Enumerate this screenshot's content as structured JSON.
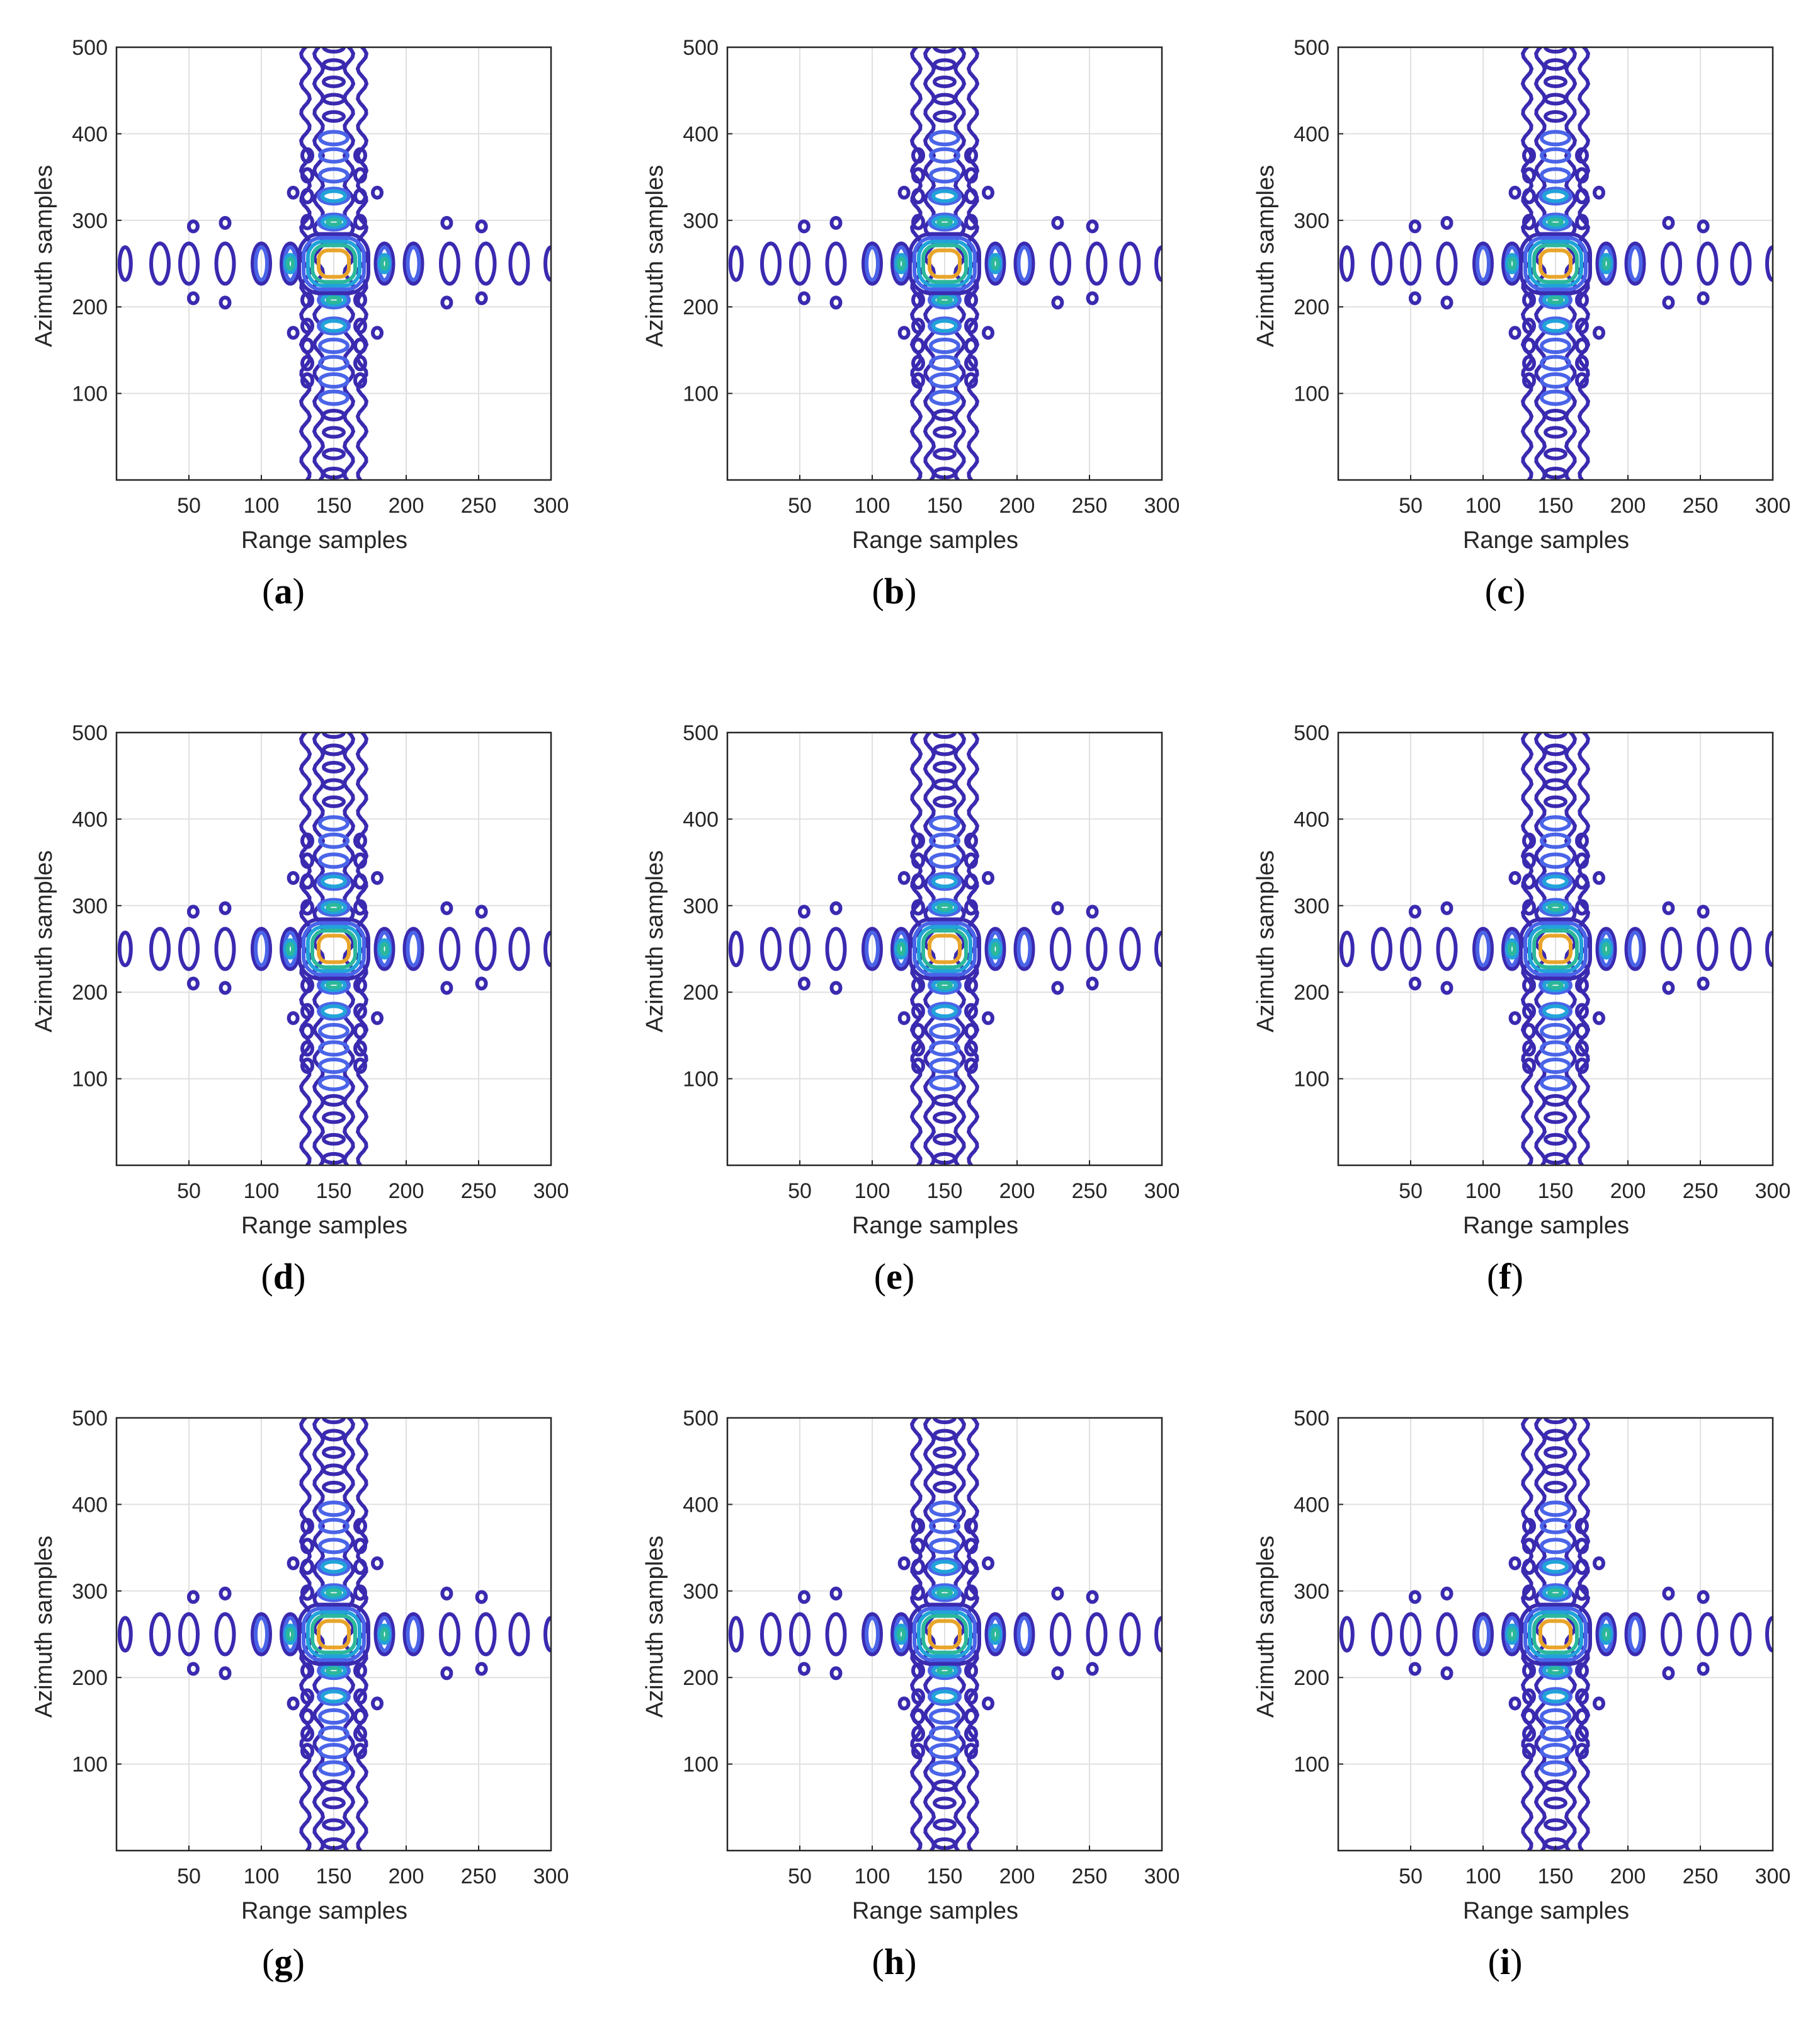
{
  "figure": {
    "panels": [
      {
        "label": "(a)",
        "letter": "a"
      },
      {
        "label": "(b)",
        "letter": "b"
      },
      {
        "label": "(c)",
        "letter": "c"
      },
      {
        "label": "(d)",
        "letter": "d"
      },
      {
        "label": "(e)",
        "letter": "e"
      },
      {
        "label": "(f)",
        "letter": "f"
      },
      {
        "label": "(g)",
        "letter": "g"
      },
      {
        "label": "(h)",
        "letter": "h"
      },
      {
        "label": "(i)",
        "letter": "i"
      }
    ]
  },
  "chart_data": {
    "type": "contour",
    "xlabel": "Range samples",
    "ylabel": "Azimuth samples",
    "xlim": [
      0,
      300
    ],
    "ylim": [
      0,
      500
    ],
    "xticks": [
      50,
      100,
      150,
      200,
      250,
      300
    ],
    "yticks": [
      100,
      200,
      300,
      400,
      500
    ],
    "grid": true,
    "peak": {
      "x": 150,
      "y": 250
    },
    "colors": {
      "level1": "#3a2ab0",
      "level2": "#4a64e8",
      "level3": "#21a3d9",
      "level4": "#2cb89a",
      "level5": "#e8a52a",
      "axis": "#262626",
      "grid": "#e0e0e0"
    },
    "horizontal_lobes": [
      {
        "x": 6,
        "level": 1
      },
      {
        "x": 30,
        "level": 1
      },
      {
        "x": 50,
        "level": 1
      },
      {
        "x": 75,
        "level": 1
      },
      {
        "x": 100,
        "level": 2
      },
      {
        "x": 120,
        "level": 4
      },
      {
        "x": 185,
        "level": 4
      },
      {
        "x": 205,
        "level": 2
      },
      {
        "x": 230,
        "level": 1
      },
      {
        "x": 255,
        "level": 1
      },
      {
        "x": 278,
        "level": 1
      },
      {
        "x": 300,
        "level": 1
      }
    ],
    "vertical_lobes": [
      {
        "y": 8,
        "level": 1
      },
      {
        "y": 30,
        "level": 1
      },
      {
        "y": 55,
        "level": 1
      },
      {
        "y": 75,
        "level": 1
      },
      {
        "y": 95,
        "level": 2
      },
      {
        "y": 115,
        "level": 2
      },
      {
        "y": 135,
        "level": 2
      },
      {
        "y": 155,
        "level": 2
      },
      {
        "y": 178,
        "level": 3
      },
      {
        "y": 208,
        "level": 4
      },
      {
        "y": 298,
        "level": 4
      },
      {
        "y": 328,
        "level": 3
      },
      {
        "y": 352,
        "level": 2
      },
      {
        "y": 375,
        "level": 2
      },
      {
        "y": 395,
        "level": 2
      },
      {
        "y": 420,
        "level": 1
      },
      {
        "y": 440,
        "level": 1
      },
      {
        "y": 460,
        "level": 1
      },
      {
        "y": 480,
        "level": 1
      },
      {
        "y": 500,
        "level": 1
      }
    ],
    "panels": [
      "a",
      "b",
      "c",
      "d",
      "e",
      "f",
      "g",
      "h",
      "i"
    ]
  }
}
